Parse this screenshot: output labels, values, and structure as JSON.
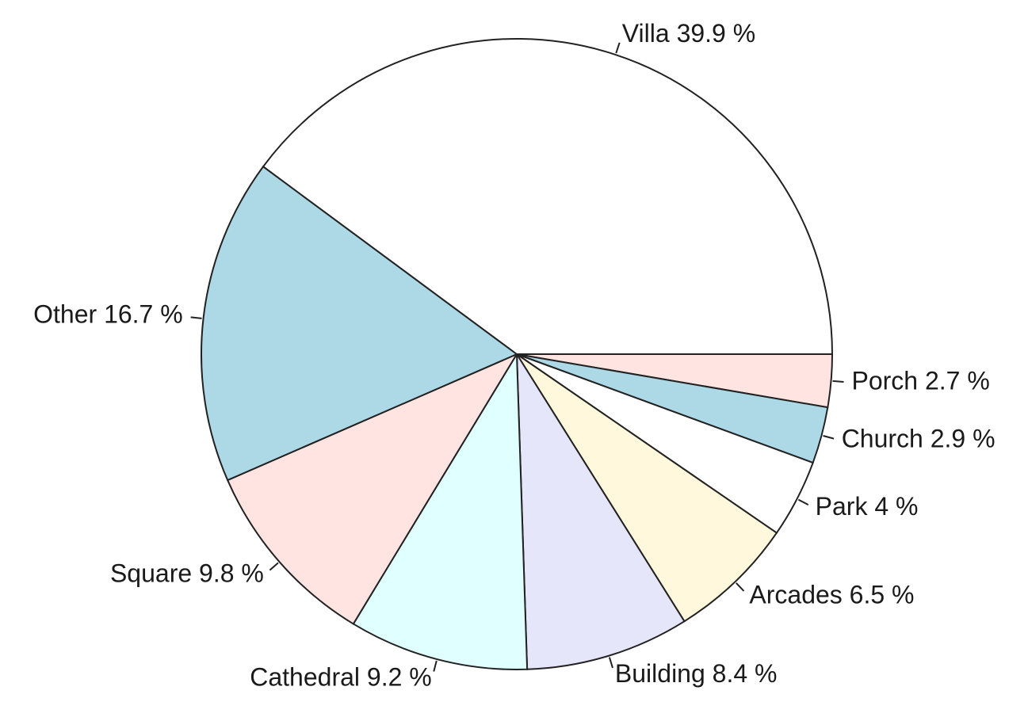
{
  "chart_data": {
    "type": "pie",
    "title": "",
    "direction": "clockwise",
    "start": "3 o'clock",
    "slices": [
      {
        "id": "porch",
        "label": "Porch 2.7 %",
        "category": "Porch",
        "value": 2.7,
        "color": "#ffe4e1"
      },
      {
        "id": "church",
        "label": "Church 2.9 %",
        "category": "Church",
        "value": 2.9,
        "color": "#add8e6"
      },
      {
        "id": "park",
        "label": "Park 4 %",
        "category": "Park",
        "value": 4.0,
        "color": "#ffffff"
      },
      {
        "id": "arcades",
        "label": "Arcades 6.5 %",
        "category": "Arcades",
        "value": 6.5,
        "color": "#fff8dc"
      },
      {
        "id": "building",
        "label": "Building 8.4 %",
        "category": "Building",
        "value": 8.4,
        "color": "#e6e6fa"
      },
      {
        "id": "cathedral",
        "label": "Cathedral 9.2 %",
        "category": "Cathedral",
        "value": 9.2,
        "color": "#e0ffff"
      },
      {
        "id": "square",
        "label": "Square 9.8 %",
        "category": "Square",
        "value": 9.8,
        "color": "#ffe4e1"
      },
      {
        "id": "other",
        "label": "Other 16.7 %",
        "category": "Other",
        "value": 16.7,
        "color": "#add8e6"
      },
      {
        "id": "villa",
        "label": "Villa 39.9 %",
        "category": "Villa",
        "value": 39.9,
        "color": "#ffffff"
      }
    ]
  }
}
